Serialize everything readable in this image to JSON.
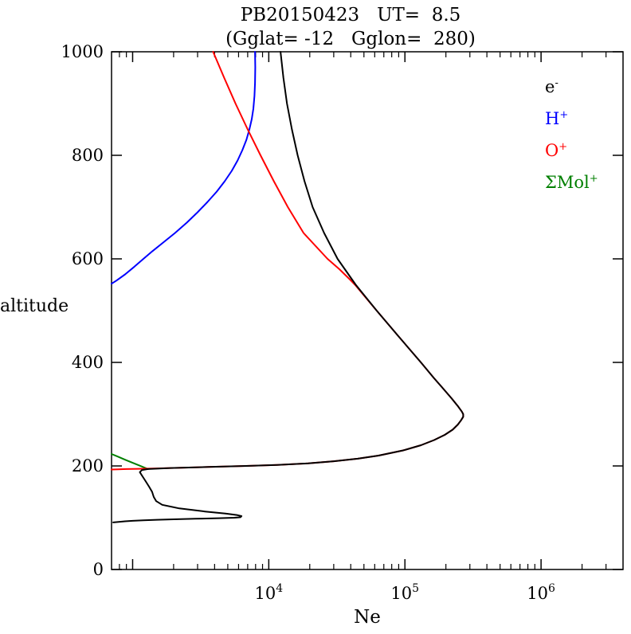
{
  "title": {
    "line1": "PB20150423   UT=  8.5",
    "line2": "(Gglat= -12   Gglon=  280)"
  },
  "axes": {
    "y_label": "altitude",
    "x_label": "Ne"
  },
  "legend": {
    "items": [
      {
        "base": "e",
        "sup": "-",
        "color": "#000000"
      },
      {
        "base": "H",
        "sup": "+",
        "color": "#0000ff"
      },
      {
        "base": "O",
        "sup": "+",
        "color": "#ff0000"
      },
      {
        "base": "ΣMol",
        "sup": "+",
        "color": "#007f00"
      }
    ]
  },
  "chart_data": {
    "type": "line",
    "title": "PB20150423   UT=  8.5",
    "subtitle": "(Gglat= -12   Gglon=  280)",
    "xlabel": "Ne",
    "ylabel": "altitude",
    "x_scale": "log",
    "xlim": [
      700,
      4000000
    ],
    "ylim": [
      0,
      1000
    ],
    "grid": false,
    "legend_position": "top-right-inside",
    "y_ticks": [
      0,
      200,
      400,
      600,
      800,
      1000
    ],
    "x_major_ticks": [
      1000,
      10000,
      100000,
      1000000
    ],
    "x_tick_labels": [
      {
        "value": 10000,
        "base": "10",
        "exp": "4"
      },
      {
        "value": 100000,
        "base": "10",
        "exp": "5"
      },
      {
        "value": 1000000,
        "base": "10",
        "exp": "6"
      }
    ],
    "series": [
      {
        "name": "ΣMol+",
        "id": "sum-mol-plus",
        "color": "#007f00",
        "points_alt_ne": [
          [
            223,
            700
          ],
          [
            218,
            780
          ],
          [
            212,
            880
          ],
          [
            206,
            1000
          ],
          [
            201,
            1120
          ],
          [
            197,
            1220
          ],
          [
            194,
            1300
          ]
        ]
      },
      {
        "name": "H+",
        "id": "h-plus",
        "color": "#0000ff",
        "points_alt_ne": [
          [
            552,
            700
          ],
          [
            558,
            760
          ],
          [
            570,
            880
          ],
          [
            585,
            1030
          ],
          [
            600,
            1200
          ],
          [
            615,
            1400
          ],
          [
            630,
            1650
          ],
          [
            650,
            2050
          ],
          [
            670,
            2500
          ],
          [
            690,
            3000
          ],
          [
            710,
            3550
          ],
          [
            730,
            4150
          ],
          [
            750,
            4750
          ],
          [
            770,
            5350
          ],
          [
            790,
            5900
          ],
          [
            810,
            6400
          ],
          [
            830,
            6850
          ],
          [
            850,
            7200
          ],
          [
            870,
            7500
          ],
          [
            890,
            7700
          ],
          [
            915,
            7850
          ],
          [
            940,
            7930
          ],
          [
            970,
            7960
          ],
          [
            1000,
            7930
          ]
        ]
      },
      {
        "name": "O+",
        "id": "o-plus",
        "color": "#ff0000",
        "points_alt_ne": [
          [
            1000,
            3900
          ],
          [
            950,
            4700
          ],
          [
            900,
            5700
          ],
          [
            850,
            7000
          ],
          [
            800,
            8700
          ],
          [
            750,
            10900
          ],
          [
            700,
            13800
          ],
          [
            650,
            18000
          ],
          [
            600,
            27000
          ],
          [
            580,
            33000
          ],
          [
            560,
            39500
          ],
          [
            550,
            43000
          ],
          [
            500,
            62000
          ],
          [
            450,
            90000
          ],
          [
            400,
            131000
          ],
          [
            370,
            163000
          ],
          [
            350,
            190000
          ],
          [
            330,
            221000
          ],
          [
            315,
            246000
          ],
          [
            305,
            262000
          ],
          [
            300,
            268000
          ],
          [
            295,
            268000
          ],
          [
            288,
            258000
          ],
          [
            280,
            245000
          ],
          [
            270,
            224000
          ],
          [
            260,
            196000
          ],
          [
            250,
            164000
          ],
          [
            240,
            131000
          ],
          [
            230,
            97000
          ],
          [
            220,
            64000
          ],
          [
            214,
            45000
          ],
          [
            209,
            30000
          ],
          [
            205,
            19500
          ],
          [
            202,
            11500
          ],
          [
            200,
            6800
          ],
          [
            198,
            3600
          ],
          [
            196,
            1900
          ],
          [
            195,
            1400
          ],
          [
            194.5,
            1100
          ],
          [
            194,
            900
          ],
          [
            193.5,
            780
          ],
          [
            193,
            700
          ]
        ]
      },
      {
        "name": "e-",
        "id": "e-minus",
        "color": "#000000",
        "points_alt_ne": [
          [
            1000,
            12200
          ],
          [
            950,
            12800
          ],
          [
            900,
            13600
          ],
          [
            850,
            14800
          ],
          [
            800,
            16300
          ],
          [
            750,
            18300
          ],
          [
            700,
            21000
          ],
          [
            650,
            25500
          ],
          [
            600,
            32000
          ],
          [
            550,
            43500
          ],
          [
            500,
            62000
          ],
          [
            450,
            90000
          ],
          [
            400,
            131000
          ],
          [
            370,
            163000
          ],
          [
            350,
            190000
          ],
          [
            330,
            221000
          ],
          [
            315,
            246000
          ],
          [
            305,
            262000
          ],
          [
            300,
            268000
          ],
          [
            295,
            268000
          ],
          [
            288,
            258000
          ],
          [
            280,
            245000
          ],
          [
            270,
            224000
          ],
          [
            260,
            196000
          ],
          [
            250,
            164000
          ],
          [
            240,
            131000
          ],
          [
            230,
            97000
          ],
          [
            220,
            64000
          ],
          [
            214,
            45000
          ],
          [
            209,
            30000
          ],
          [
            205,
            19500
          ],
          [
            202,
            11500
          ],
          [
            200,
            6800
          ],
          [
            198,
            3600
          ],
          [
            196,
            1900
          ],
          [
            194,
            1300
          ],
          [
            192,
            1170
          ],
          [
            188,
            1130
          ],
          [
            180,
            1180
          ],
          [
            170,
            1250
          ],
          [
            160,
            1320
          ],
          [
            150,
            1390
          ],
          [
            140,
            1430
          ],
          [
            132,
            1490
          ],
          [
            125,
            1650
          ],
          [
            118,
            2200
          ],
          [
            112,
            3400
          ],
          [
            108,
            4800
          ],
          [
            105,
            5900
          ],
          [
            103,
            6300
          ],
          [
            101,
            6200
          ],
          [
            100,
            5600
          ],
          [
            99,
            4300
          ],
          [
            98,
            2900
          ],
          [
            97,
            2000
          ],
          [
            96,
            1500
          ],
          [
            95,
            1200
          ],
          [
            94,
            1000
          ],
          [
            93,
            880
          ],
          [
            92,
            790
          ],
          [
            91,
            720
          ]
        ]
      }
    ]
  }
}
